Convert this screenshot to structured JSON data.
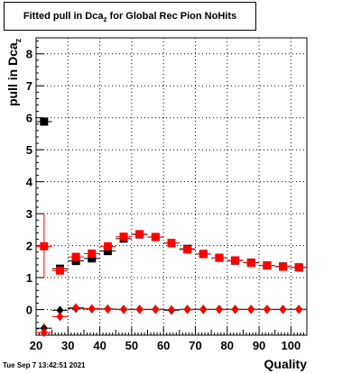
{
  "title": {
    "main": "Fitted pull in Dca",
    "sub": "z",
    "rest": " for Global Rec Pion NoHits"
  },
  "ylabel": {
    "main": "pull in Dca",
    "sub": "z"
  },
  "xlabel": "Quality",
  "timestamp": "Tue Sep  7 13:42:51 2021",
  "chart_data": {
    "type": "scatter",
    "title": "Fitted pull in Dca_z for Global Rec Pion NoHits",
    "xlabel": "Quality",
    "ylabel": "pull in Dca_z",
    "xlim": [
      20,
      105
    ],
    "ylim": [
      -0.8,
      8.5
    ],
    "xticks": [
      20,
      30,
      40,
      50,
      60,
      70,
      80,
      90,
      100
    ],
    "yticks": [
      0,
      1,
      2,
      3,
      4,
      5,
      6,
      7,
      8
    ],
    "grid": true,
    "series": [
      {
        "marker": "square",
        "color": "#000000",
        "x": [
          22.5,
          27.5,
          32.5,
          37.5,
          42.5,
          47.5,
          52.5,
          57.5,
          62.5,
          67.5,
          72.5,
          77.5,
          82.5,
          87.5,
          92.5,
          97.5,
          102.5
        ],
        "y": [
          5.88,
          1.28,
          1.52,
          1.6,
          1.83,
          2.22,
          2.35,
          2.27,
          2.08,
          1.9,
          1.74,
          1.62,
          1.53,
          1.47,
          1.38,
          1.35,
          1.32
        ],
        "yerr": [
          0.0,
          0.05,
          0.07,
          0.05,
          0.05,
          0.05,
          0.05,
          0.04,
          0.04,
          0.04,
          0.04,
          0.03,
          0.03,
          0.03,
          0.03,
          0.03,
          0.03
        ]
      },
      {
        "marker": "diamond",
        "color": "#000000",
        "x": [
          22.5,
          27.5,
          32.5,
          37.5,
          42.5,
          47.5,
          52.5,
          57.5,
          62.5,
          67.5,
          72.5,
          77.5,
          82.5,
          87.5,
          92.5,
          97.5,
          102.5
        ],
        "y": [
          -0.58,
          -0.02,
          0.04,
          0.02,
          0.02,
          0.01,
          0.01,
          0.01,
          -0.02,
          0.01,
          0.01,
          0.01,
          0.01,
          0.01,
          0.01,
          0.01,
          0.01
        ],
        "yerr": [
          0.0,
          0.03,
          0.03,
          0.02,
          0.02,
          0.02,
          0.02,
          0.02,
          0.02,
          0.02,
          0.02,
          0.02,
          0.02,
          0.02,
          0.02,
          0.02,
          0.02
        ]
      },
      {
        "marker": "square",
        "color": "#ff0000",
        "x": [
          22.5,
          27.5,
          32.5,
          37.5,
          42.5,
          47.5,
          52.5,
          57.5,
          62.5,
          67.5,
          72.5,
          77.5,
          82.5,
          87.5,
          92.5,
          97.5,
          102.5
        ],
        "y": [
          1.98,
          1.22,
          1.65,
          1.75,
          1.98,
          2.28,
          2.36,
          2.27,
          2.08,
          1.88,
          1.74,
          1.62,
          1.54,
          1.46,
          1.38,
          1.34,
          1.32
        ],
        "yerr": [
          1.0,
          0.1,
          0.06,
          0.05,
          0.05,
          0.05,
          0.04,
          0.04,
          0.04,
          0.04,
          0.04,
          0.03,
          0.03,
          0.03,
          0.03,
          0.03,
          0.03
        ]
      },
      {
        "marker": "diamond",
        "color": "#ff0000",
        "x": [
          22.5,
          27.5,
          32.5,
          37.5,
          42.5,
          47.5,
          52.5,
          57.5,
          62.5,
          67.5,
          72.5,
          77.5,
          82.5,
          87.5,
          92.5,
          97.5,
          102.5
        ],
        "y": [
          -0.72,
          -0.22,
          0.06,
          0.03,
          0.01,
          0.0,
          0.0,
          0.0,
          0.0,
          0.0,
          0.0,
          0.0,
          0.0,
          0.0,
          0.0,
          0.0,
          0.0
        ],
        "yerr": [
          0.3,
          0.05,
          0.03,
          0.02,
          0.02,
          0.02,
          0.02,
          0.02,
          0.02,
          0.02,
          0.02,
          0.02,
          0.02,
          0.02,
          0.02,
          0.02,
          0.02
        ]
      }
    ]
  }
}
